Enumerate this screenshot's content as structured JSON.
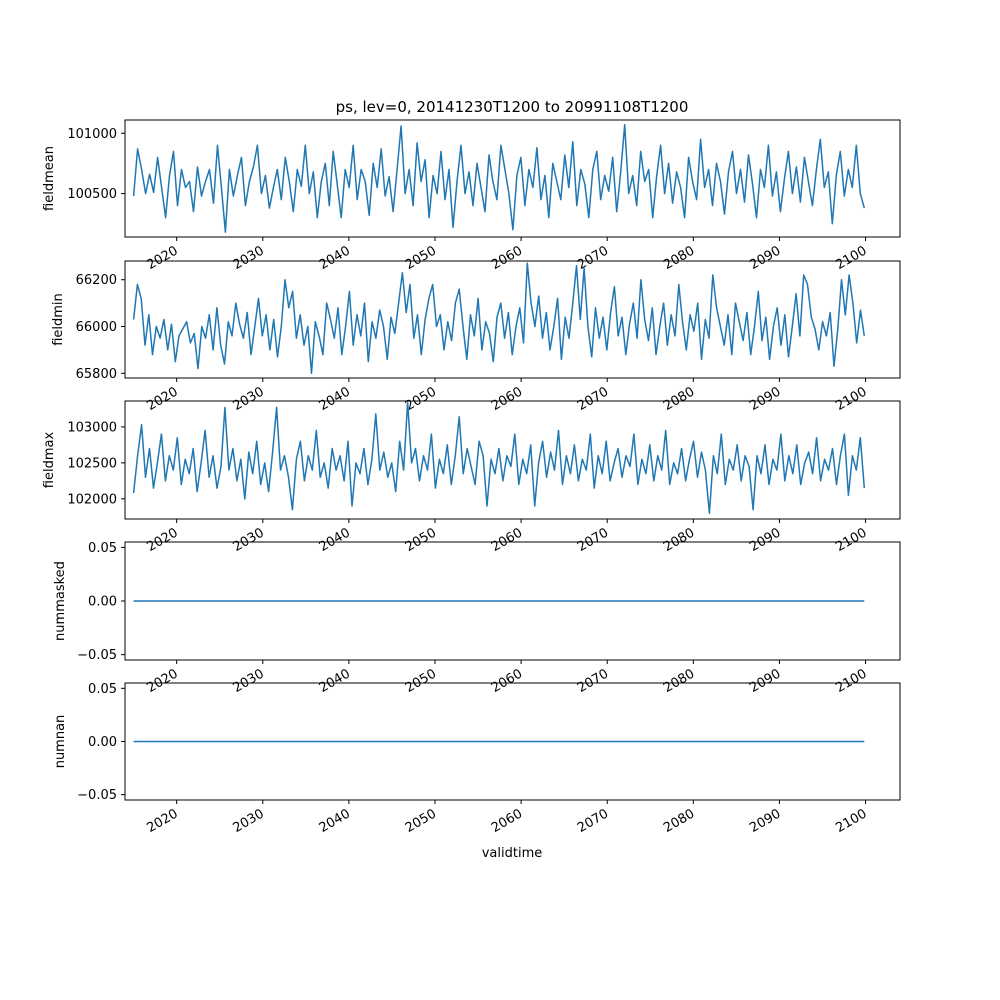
{
  "chart_data": [
    {
      "type": "line",
      "title": "ps, lev=0, 20141230T1200 to 20991108T1200",
      "xlabel": "",
      "ylabel": "fieldmean",
      "xlim": [
        2014.0,
        2104.0
      ],
      "ylim": [
        100140,
        101110
      ],
      "yticks": [
        100500,
        101000
      ],
      "ytick_labels": [
        "100500",
        "101000"
      ],
      "xticks": [
        2020,
        2030,
        2040,
        2050,
        2060,
        2070,
        2080,
        2090,
        2100
      ],
      "xtick_labels": [
        "2020",
        "2030",
        "2040",
        "2050",
        "2060",
        "2070",
        "2080",
        "2090",
        "2100"
      ],
      "grid": false,
      "series": [
        {
          "color": "#1f77b4",
          "x_start": 2015.0,
          "x_end": 2099.85,
          "y": [
            100480,
            100870,
            100700,
            100500,
            100660,
            100510,
            100800,
            100550,
            100300,
            100650,
            100850,
            100400,
            100700,
            100550,
            100600,
            100350,
            100720,
            100480,
            100600,
            100700,
            100420,
            100900,
            100550,
            100180,
            100700,
            100480,
            100650,
            100800,
            100400,
            100600,
            100720,
            100900,
            100500,
            100650,
            100380,
            100550,
            100700,
            100450,
            100800,
            100600,
            100350,
            100700,
            100560,
            100900,
            100500,
            100680,
            100300,
            100600,
            100750,
            100400,
            100850,
            100580,
            100300,
            100700,
            100550,
            100900,
            100450,
            100700,
            100600,
            100320,
            100750,
            100550,
            100870,
            100480,
            100640,
            100350,
            100700,
            101060,
            100500,
            100700,
            100400,
            100920,
            100600,
            100780,
            100300,
            100650,
            100500,
            100850,
            100450,
            100700,
            100220,
            100600,
            100900,
            100500,
            100680,
            100400,
            100750,
            100550,
            100350,
            100820,
            100600,
            100450,
            100900,
            100700,
            100500,
            100200,
            100650,
            100800,
            100400,
            100700,
            100550,
            100880,
            100450,
            100650,
            100300,
            100750,
            100600,
            100450,
            100820,
            100550,
            100930,
            100400,
            100700,
            100580,
            100300,
            100700,
            100850,
            100450,
            100650,
            100520,
            100800,
            100350,
            100680,
            101070,
            100500,
            100650,
            100400,
            100850,
            100600,
            100700,
            100300,
            100640,
            100900,
            100500,
            100750,
            100420,
            100680,
            100550,
            100300,
            100800,
            100600,
            100450,
            100950,
            100550,
            100700,
            100400,
            100750,
            100600,
            100330,
            100680,
            100850,
            100500,
            100700,
            100430,
            100820,
            100580,
            100300,
            100700,
            100550,
            100900,
            100480,
            100680,
            100350,
            100620,
            100850,
            100500,
            100720,
            100430,
            100800,
            100600,
            100400,
            100700,
            100950,
            100550,
            100680,
            100250,
            100650,
            100850,
            100480,
            100700,
            100550,
            100900,
            100500,
            100380
          ]
        }
      ]
    },
    {
      "type": "line",
      "title": "",
      "xlabel": "",
      "ylabel": "fieldmin",
      "xlim": [
        2014.0,
        2104.0
      ],
      "ylim": [
        65780,
        66280
      ],
      "yticks": [
        65800,
        66000,
        66200
      ],
      "ytick_labels": [
        "65800",
        "66000",
        "66200"
      ],
      "xticks": [
        2020,
        2030,
        2040,
        2050,
        2060,
        2070,
        2080,
        2090,
        2100
      ],
      "xtick_labels": [
        "2020",
        "2030",
        "2040",
        "2050",
        "2060",
        "2070",
        "2080",
        "2090",
        "2100"
      ],
      "grid": false,
      "series": [
        {
          "color": "#1f77b4",
          "x_start": 2015.0,
          "x_end": 2099.85,
          "y": [
            66030,
            66180,
            66120,
            65920,
            66050,
            65880,
            66000,
            65950,
            66030,
            65900,
            66010,
            65850,
            65960,
            65990,
            66020,
            65930,
            65970,
            65820,
            66000,
            65950,
            66050,
            65900,
            66080,
            65920,
            65840,
            66020,
            65960,
            66100,
            66010,
            65950,
            66060,
            65880,
            66000,
            66120,
            65960,
            66050,
            65900,
            66030,
            65870,
            66000,
            66200,
            66080,
            66150,
            65950,
            66050,
            65920,
            66000,
            65800,
            66020,
            65960,
            65880,
            66100,
            66030,
            65950,
            66080,
            65880,
            66000,
            66150,
            65920,
            66050,
            65960,
            66100,
            65850,
            66020,
            65950,
            66070,
            66000,
            65860,
            66040,
            65970,
            66100,
            66230,
            66060,
            66180,
            65950,
            66050,
            65880,
            66030,
            66120,
            66180,
            66000,
            66050,
            65900,
            66020,
            65940,
            66100,
            66160,
            66000,
            65860,
            66050,
            65960,
            66120,
            65900,
            66020,
            65970,
            65850,
            66040,
            66100,
            65950,
            66060,
            65880,
            66000,
            66080,
            65930,
            66270,
            66100,
            66000,
            66130,
            65950,
            66060,
            65900,
            66000,
            66120,
            65860,
            66040,
            65950,
            66100,
            66260,
            66030,
            66250,
            66000,
            65870,
            66080,
            65950,
            66040,
            65900,
            66060,
            66170,
            65960,
            66040,
            65880,
            66010,
            66100,
            65950,
            66200,
            66030,
            65940,
            66080,
            65880,
            66000,
            66100,
            65920,
            66050,
            65960,
            66180,
            66020,
            65900,
            66050,
            65980,
            66100,
            65860,
            66030,
            65950,
            66220,
            66080,
            66000,
            65920,
            66050,
            65880,
            66100,
            66020,
            65940,
            66060,
            65880,
            66000,
            66150,
            65940,
            66040,
            65860,
            66000,
            66080,
            65920,
            66050,
            65870,
            66000,
            66140,
            65960,
            66220,
            66180,
            66040,
            65990,
            65900,
            66020,
            65960,
            66060,
            65830,
            65990,
            66200,
            66050,
            66220,
            66100,
            65930,
            66070,
            65960
          ]
        }
      ]
    },
    {
      "type": "line",
      "title": "",
      "xlabel": "",
      "ylabel": "fieldmax",
      "xlim": [
        2014.0,
        2104.0
      ],
      "ylim": [
        101720,
        103360
      ],
      "yticks": [
        102000,
        102500,
        103000
      ],
      "ytick_labels": [
        "102000",
        "102500",
        "103000"
      ],
      "xticks": [
        2020,
        2030,
        2040,
        2050,
        2060,
        2070,
        2080,
        2090,
        2100
      ],
      "xtick_labels": [
        "2020",
        "2030",
        "2040",
        "2050",
        "2060",
        "2070",
        "2080",
        "2090",
        "2100"
      ],
      "grid": false,
      "series": [
        {
          "color": "#1f77b4",
          "x_start": 2015.0,
          "x_end": 2099.85,
          "y": [
            102080,
            102600,
            103030,
            102300,
            102700,
            102150,
            102500,
            102900,
            102250,
            102600,
            102400,
            102850,
            102200,
            102550,
            102350,
            102700,
            102100,
            102500,
            102950,
            102300,
            102600,
            102150,
            102450,
            103270,
            102400,
            102700,
            102250,
            102550,
            102000,
            102650,
            102350,
            102800,
            102200,
            102500,
            102100,
            102650,
            103270,
            102400,
            102600,
            102300,
            101850,
            102550,
            102800,
            102250,
            102600,
            102400,
            102950,
            102300,
            102500,
            102150,
            102700,
            102400,
            102600,
            102250,
            102800,
            101900,
            102500,
            102350,
            102700,
            102200,
            102550,
            103180,
            102400,
            102650,
            102300,
            102500,
            102100,
            102800,
            102400,
            103340,
            102500,
            102700,
            102250,
            102600,
            102400,
            102900,
            102150,
            102550,
            102350,
            102750,
            102200,
            102600,
            103140,
            102350,
            102700,
            102450,
            102200,
            102800,
            102600,
            101900,
            102550,
            102350,
            102700,
            102250,
            102600,
            102450,
            102900,
            102200,
            102550,
            102350,
            102750,
            101900,
            102500,
            102800,
            102300,
            102650,
            102400,
            102950,
            102200,
            102600,
            102350,
            102750,
            102250,
            102550,
            102400,
            102900,
            102150,
            102600,
            102350,
            102800,
            102250,
            102500,
            102700,
            102300,
            102600,
            102450,
            102900,
            102200,
            102550,
            102350,
            102750,
            102250,
            102600,
            102400,
            102950,
            102200,
            102500,
            102350,
            102700,
            102250,
            102550,
            102800,
            102300,
            102650,
            102400,
            101800,
            102600,
            102350,
            102900,
            102200,
            102550,
            102400,
            102750,
            102250,
            102600,
            102450,
            101850,
            102600,
            102350,
            102750,
            102200,
            102550,
            102400,
            102900,
            102250,
            102600,
            102350,
            102750,
            102200,
            102500,
            102650,
            102350,
            102850,
            102250,
            102550,
            102400,
            102700,
            102200,
            102600,
            102900,
            102050,
            102600,
            102400,
            102850,
            102150
          ]
        }
      ]
    },
    {
      "type": "line",
      "title": "",
      "xlabel": "",
      "ylabel": "nummasked",
      "xlim": [
        2014.0,
        2104.0
      ],
      "ylim": [
        -0.055,
        0.055
      ],
      "yticks": [
        -0.05,
        0.0,
        0.05
      ],
      "ytick_labels": [
        "−0.05",
        "0.00",
        "0.05"
      ],
      "xticks": [
        2020,
        2030,
        2040,
        2050,
        2060,
        2070,
        2080,
        2090,
        2100
      ],
      "xtick_labels": [
        "2020",
        "2030",
        "2040",
        "2050",
        "2060",
        "2070",
        "2080",
        "2090",
        "2100"
      ],
      "grid": false,
      "series": [
        {
          "color": "#1f77b4",
          "x_start": 2015.0,
          "x_end": 2099.85,
          "y": [
            0,
            0
          ]
        }
      ]
    },
    {
      "type": "line",
      "title": "",
      "xlabel": "validtime",
      "ylabel": "numnan",
      "xlim": [
        2014.0,
        2104.0
      ],
      "ylim": [
        -0.055,
        0.055
      ],
      "yticks": [
        -0.05,
        0.0,
        0.05
      ],
      "ytick_labels": [
        "−0.05",
        "0.00",
        "0.05"
      ],
      "xticks": [
        2020,
        2030,
        2040,
        2050,
        2060,
        2070,
        2080,
        2090,
        2100
      ],
      "xtick_labels": [
        "2020",
        "2030",
        "2040",
        "2050",
        "2060",
        "2070",
        "2080",
        "2090",
        "2100"
      ],
      "grid": false,
      "series": [
        {
          "color": "#1f77b4",
          "x_start": 2015.0,
          "x_end": 2099.85,
          "y": [
            0,
            0
          ]
        }
      ]
    }
  ]
}
